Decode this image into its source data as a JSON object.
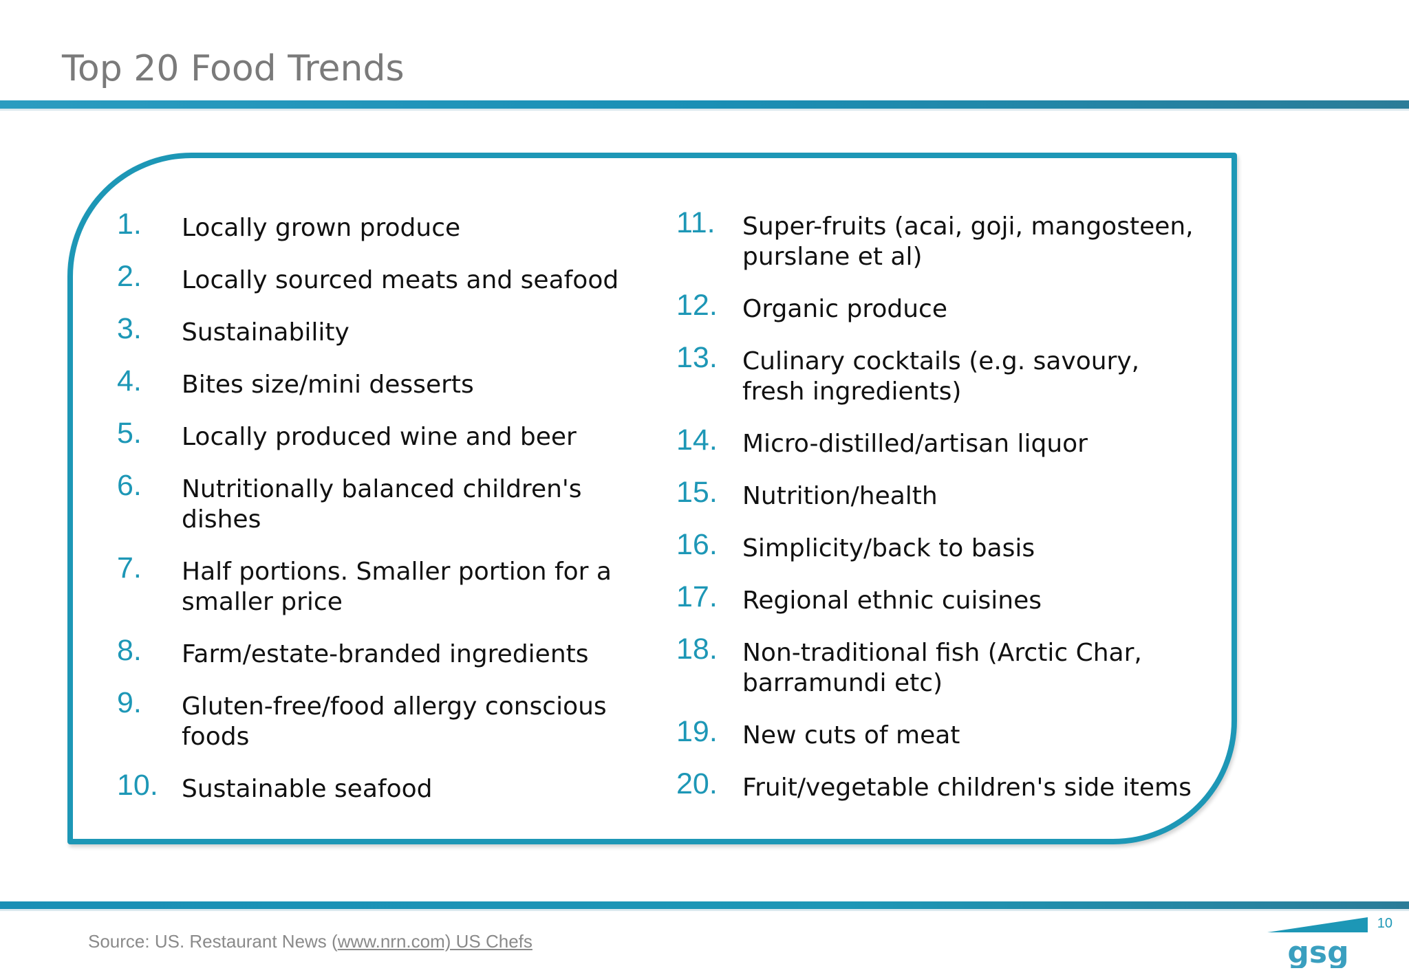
{
  "slide": {
    "title": "Top 20 Food Trends",
    "page_number": "10",
    "source": {
      "prefix": "Source: US. Restaurant News (",
      "link_text": "www.nrn.com) US Chefs"
    },
    "logo_text": "gsg"
  },
  "trends_left": [
    {
      "num": "1.",
      "text": "Locally grown produce"
    },
    {
      "num": "2.",
      "text": "Locally sourced meats and seafood"
    },
    {
      "num": "3.",
      "text": "Sustainability"
    },
    {
      "num": "4.",
      "text": "Bites size/mini desserts"
    },
    {
      "num": "5.",
      "text": "Locally produced wine and beer"
    },
    {
      "num": "6.",
      "text": "Nutritionally balanced children's dishes"
    },
    {
      "num": "7.",
      "text": "Half portions. Smaller portion for a smaller price"
    },
    {
      "num": "8.",
      "text": "Farm/estate-branded ingredients"
    },
    {
      "num": "9.",
      "text": "Gluten-free/food allergy conscious foods"
    },
    {
      "num": "10.",
      "text": "Sustainable seafood"
    }
  ],
  "trends_right": [
    {
      "num": "11.",
      "text": "Super-fruits (acai, goji, mangosteen, purslane et al)"
    },
    {
      "num": "12.",
      "text": "Organic produce"
    },
    {
      "num": "13.",
      "text": "Culinary cocktails (e.g. savoury, fresh ingredients)"
    },
    {
      "num": "14.",
      "text": "Micro-distilled/artisan liquor"
    },
    {
      "num": "15.",
      "text": "Nutrition/health"
    },
    {
      "num": "16.",
      "text": "Simplicity/back to basis"
    },
    {
      "num": "17.",
      "text": "Regional ethnic cuisines"
    },
    {
      "num": "18.",
      "text": "Non-traditional fish (Arctic Char, barramundi etc)"
    },
    {
      "num": "19.",
      "text": "New cuts of meat"
    },
    {
      "num": "20.",
      "text": "Fruit/vegetable children's side items"
    }
  ],
  "colors": {
    "accent": "#1d97b6",
    "title": "#7a7a7a",
    "body_text": "#111111",
    "source_text": "#8a8a8a"
  }
}
